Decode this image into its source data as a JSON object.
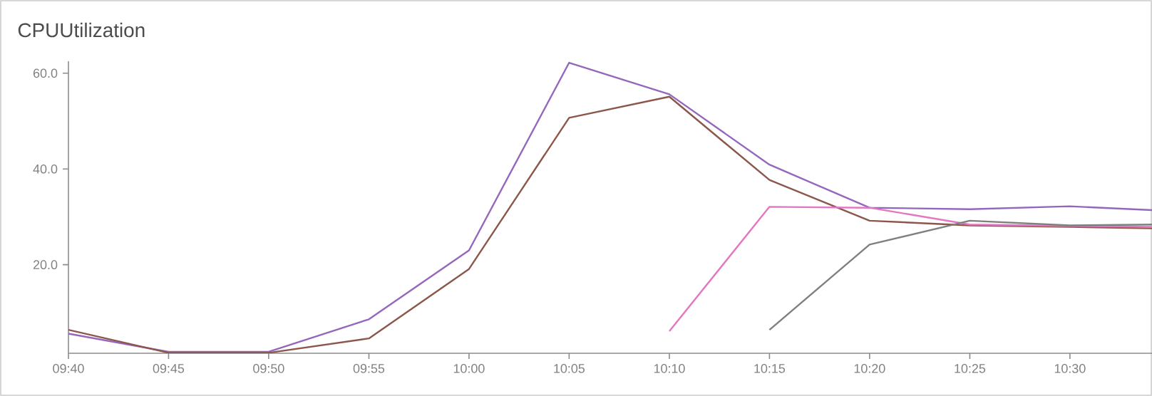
{
  "chart_data": {
    "type": "line",
    "title": "CPUUtilization",
    "x": [
      9.6667,
      9.75,
      9.8333,
      9.9167,
      10.0,
      10.0833,
      10.1667,
      10.25,
      10.3333,
      10.4167,
      10.5,
      10.5683
    ],
    "series": [
      {
        "color": "#9467bd",
        "values": [
          5.6,
          1.8,
          1.8,
          8.6,
          23.0,
          62.2,
          55.6,
          40.9,
          31.9,
          31.6,
          32.2,
          31.4
        ]
      },
      {
        "color": "#8c564b",
        "values": [
          6.4,
          1.6,
          1.6,
          4.6,
          19.1,
          50.7,
          55.1,
          37.7,
          29.2,
          28.2,
          27.9,
          27.6
        ]
      },
      {
        "color": "#e377c2",
        "values": [
          null,
          null,
          null,
          null,
          null,
          null,
          6.1,
          32.1,
          31.9,
          28.4,
          28.1,
          27.9
        ]
      },
      {
        "color": "#7f7f7f",
        "values": [
          null,
          null,
          null,
          null,
          null,
          null,
          null,
          6.4,
          24.2,
          29.2,
          28.2,
          28.4
        ]
      }
    ],
    "xlim": [
      9.6667,
      10.5683
    ],
    "ylim": [
      1.5,
      62.5
    ],
    "xticks": [
      {
        "value": 9.6667,
        "label": "09:40"
      },
      {
        "value": 9.75,
        "label": "09:45"
      },
      {
        "value": 9.8333,
        "label": "09:50"
      },
      {
        "value": 9.9167,
        "label": "09:55"
      },
      {
        "value": 10.0,
        "label": "10:00"
      },
      {
        "value": 10.0833,
        "label": "10:05"
      },
      {
        "value": 10.1667,
        "label": "10:10"
      },
      {
        "value": 10.25,
        "label": "10:15"
      },
      {
        "value": 10.3333,
        "label": "10:20"
      },
      {
        "value": 10.4167,
        "label": "10:25"
      },
      {
        "value": 10.5,
        "label": "10:30"
      }
    ],
    "yticks": [
      {
        "value": 20,
        "label": "20.0"
      },
      {
        "value": 40,
        "label": "40.0"
      },
      {
        "value": 60,
        "label": "60.0"
      }
    ]
  }
}
